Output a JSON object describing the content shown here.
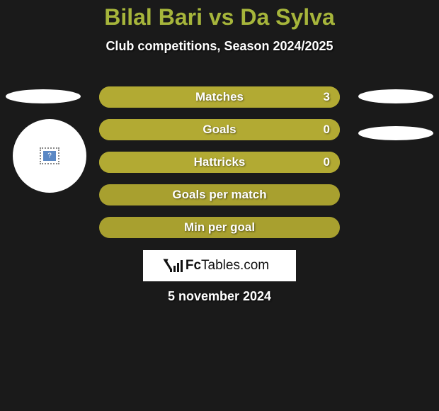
{
  "title": "Bilal Bari vs Da Sylva",
  "subtitle": "Club competitions, Season 2024/2025",
  "date": "5 november 2024",
  "logo": {
    "brand_bold": "Fc",
    "brand_rest": "Tables.com"
  },
  "colors": {
    "background": "#1a1a1a",
    "accent": "#a6b53b",
    "bar_fill": "#b2aa33",
    "bar_base": "#a8a02f",
    "text": "#ffffff"
  },
  "stats": {
    "type": "stat-bars",
    "rows": [
      {
        "label": "Matches",
        "value": "3",
        "show_value": true
      },
      {
        "label": "Goals",
        "value": "0",
        "show_value": true
      },
      {
        "label": "Hattricks",
        "value": "0",
        "show_value": true
      },
      {
        "label": "Goals per match",
        "value": "",
        "show_value": false
      },
      {
        "label": "Min per goal",
        "value": "",
        "show_value": false
      }
    ]
  }
}
